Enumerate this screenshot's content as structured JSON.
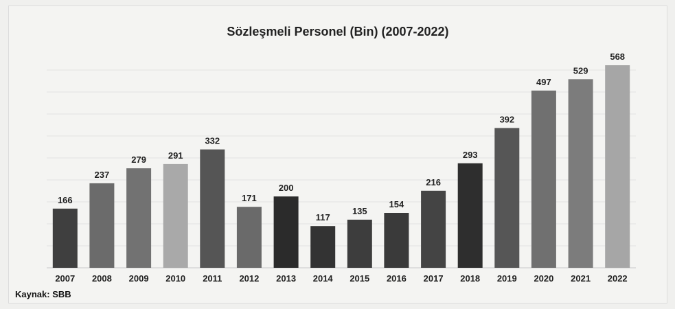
{
  "chart_data": {
    "type": "bar",
    "title": "Sözleşmeli Personel (Bin) (2007-2022)",
    "xlabel": "",
    "ylabel": "",
    "ylim": [
      0,
      600
    ],
    "grid": true,
    "legend": "none",
    "categories": [
      "2007",
      "2008",
      "2009",
      "2010",
      "2011",
      "2012",
      "2013",
      "2014",
      "2015",
      "2016",
      "2017",
      "2018",
      "2019",
      "2020",
      "2021",
      "2022"
    ],
    "values": [
      166,
      237,
      279,
      291,
      332,
      171,
      200,
      117,
      135,
      154,
      216,
      293,
      392,
      497,
      529,
      568
    ],
    "colors": [
      "#3f3f3f",
      "#6b6b6b",
      "#727272",
      "#a9a9a9",
      "#555555",
      "#6a6a6a",
      "#2b2b2b",
      "#333333",
      "#3d3d3d",
      "#3a3a3a",
      "#444444",
      "#2e2e2e",
      "#565656",
      "#707070",
      "#7c7c7c",
      "#a6a6a6"
    ]
  },
  "source": "Kaynak: SBB"
}
